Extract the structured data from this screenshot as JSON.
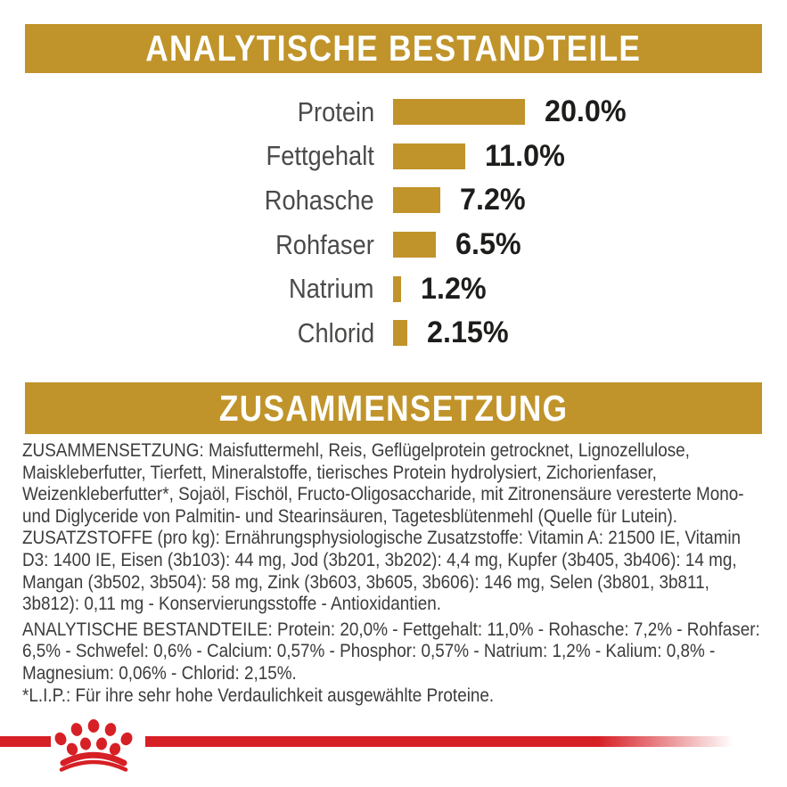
{
  "colors": {
    "gold": "#C0942A",
    "red": "#D62026",
    "header_text": "#FFFFFF",
    "body_text": "#3C3C3B",
    "chart_label_text": "#4A4A49",
    "chart_value_text": "#1D1D1B",
    "background": "#FFFFFF"
  },
  "headers": {
    "analytical": "ANALYTISCHE BESTANDTEILE",
    "composition": "ZUSAMMENSETZUNG"
  },
  "chart_data": {
    "type": "bar",
    "orientation": "horizontal",
    "title": "ANALYTISCHE BESTANDTEILE",
    "xlabel": "",
    "ylabel": "",
    "xlim": [
      0,
      20
    ],
    "grid": false,
    "legend": false,
    "bar_color": "#C0942A",
    "categories": [
      "Protein",
      "Fettgehalt",
      "Rohasche",
      "Rohfaser",
      "Natrium",
      "Chlorid"
    ],
    "values": [
      20.0,
      11.0,
      7.2,
      6.5,
      1.2,
      2.15
    ],
    "value_labels": [
      "20.0%",
      "11.0%",
      "7.2%",
      "6.5%",
      "1.2%",
      "2.15%"
    ]
  },
  "composition": {
    "paragraphs": [
      "ZUSAMMENSETZUNG: Maisfuttermehl, Reis, Geflügelprotein getrocknet, Lignozellulose, Maiskleberfutter, Tierfett, Mineralstoffe, tierisches Protein hydrolysiert, Zichorienfaser, Weizenkleberfutter*, Sojaöl, Fischöl, Fructo-Oligosaccharide, mit Zitronensäure veresterte Mono- und Diglyceride von Palmitin- und Stearinsäuren, Tagetesblütenmehl (Quelle für Lutein).",
      "ZUSATZSTOFFE (pro kg): Ernährungsphysiologische Zusatzstoffe: Vitamin A: 21500 IE, Vitamin D3: 1400 IE, Eisen (3b103): 44 mg, Jod (3b201, 3b202): 4,4 mg, Kupfer (3b405, 3b406): 14 mg, Mangan (3b502, 3b504): 58 mg, Zink (3b603, 3b605, 3b606): 146 mg, Selen (3b801, 3b811, 3b812): 0,11 mg - Konservierungsstoffe - Antioxidantien.",
      "ANALYTISCHE BESTANDTEILE: Protein: 20,0% - Fettgehalt: 11,0% - Rohasche: 7,2% - Rohfaser: 6,5% - Schwefel: 0,6% - Calcium: 0,57% - Phosphor: 0,57% - Natrium: 1,2% - Kalium: 0,8% - Magnesium: 0,06% - Chlorid: 2,15%."
    ],
    "footnote": "*L.I.P.: Für ihre sehr hohe Verdaulichkeit ausgewählte Proteine."
  },
  "footer": {
    "logo_name": "royal-canin-paw-logo",
    "stripe_color": "#D62026"
  }
}
